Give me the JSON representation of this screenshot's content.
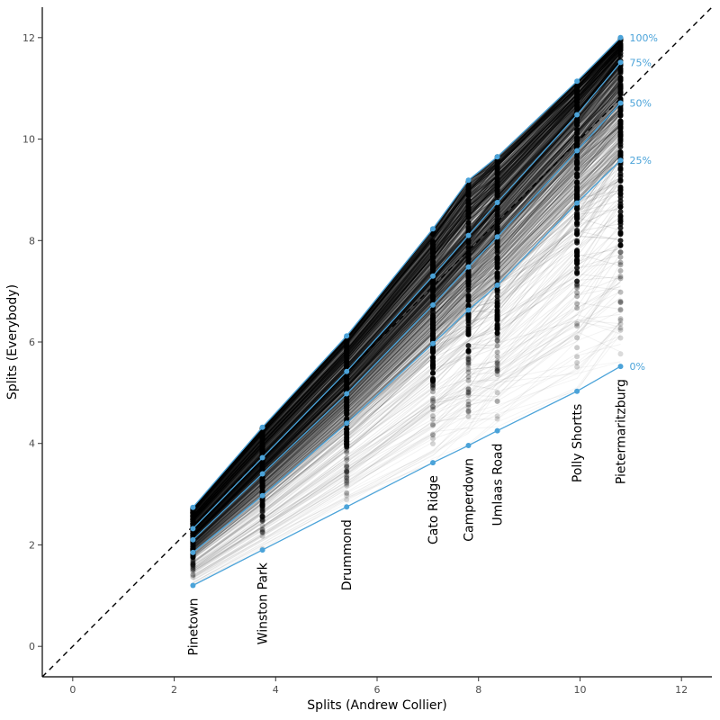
{
  "chart_data": {
    "type": "line",
    "xlabel": "Splits (Andrew Collier)",
    "ylabel": "Splits (Everybody)",
    "xlim": [
      -0.6,
      12.6
    ],
    "ylim": [
      -0.6,
      12.6
    ],
    "x_ticks": [
      0,
      2,
      4,
      6,
      8,
      10,
      12
    ],
    "y_ticks": [
      0,
      2,
      4,
      6,
      8,
      10,
      12
    ],
    "x_tick_labels": [
      "0",
      "2",
      "4",
      "6",
      "8",
      "10",
      "12"
    ],
    "y_tick_labels": [
      "0",
      "2",
      "4",
      "6",
      "8",
      "10",
      "12"
    ],
    "grid": false,
    "reference_line": {
      "slope": 1,
      "intercept": 0,
      "style": "dashed",
      "color": "#000000"
    },
    "checkpoints": [
      {
        "name": "Pinetown",
        "x": 2.37
      },
      {
        "name": "Winston Park",
        "x": 3.74
      },
      {
        "name": "Drummond",
        "x": 5.4
      },
      {
        "name": "Cato Ridge",
        "x": 7.1
      },
      {
        "name": "Camperdown",
        "x": 7.8
      },
      {
        "name": "Umlaas Road",
        "x": 8.37
      },
      {
        "name": "Polly Shortts",
        "x": 9.94
      },
      {
        "name": "Pietermaritzburg",
        "x": 10.8
      }
    ],
    "series": [
      {
        "name": "0%",
        "values": [
          1.2,
          1.9,
          2.75,
          3.62,
          3.96,
          4.25,
          5.03,
          5.52
        ]
      },
      {
        "name": "25%",
        "values": [
          1.85,
          2.97,
          4.4,
          5.97,
          6.63,
          7.12,
          8.74,
          9.58
        ]
      },
      {
        "name": "50%",
        "values": [
          2.1,
          3.4,
          4.98,
          6.73,
          7.48,
          8.07,
          9.77,
          10.71
        ]
      },
      {
        "name": "75%",
        "values": [
          2.32,
          3.72,
          5.42,
          7.3,
          8.1,
          8.75,
          10.48,
          11.51
        ]
      },
      {
        "name": "100%",
        "values": [
          2.74,
          4.32,
          6.12,
          8.23,
          9.19,
          9.65,
          11.14,
          12.0
        ]
      }
    ],
    "colors": {
      "quantile": "#4ba3d9",
      "runners": "#000000",
      "axis": "#000000"
    }
  }
}
